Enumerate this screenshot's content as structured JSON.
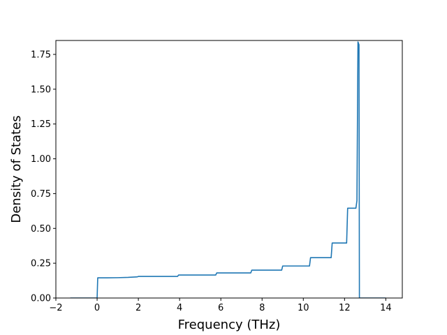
{
  "chart_data": {
    "type": "line",
    "title": "",
    "xlabel": "Frequency (THz)",
    "ylabel": "Density of States",
    "xlim": [
      -2.0,
      14.8
    ],
    "ylim": [
      0.0,
      1.85
    ],
    "xticks": [
      -2,
      0,
      2,
      4,
      6,
      8,
      10,
      12,
      14
    ],
    "yticks": [
      0.0,
      0.25,
      0.5,
      0.75,
      1.0,
      1.25,
      1.5,
      1.75
    ],
    "xtick_labels": [
      "−2",
      "0",
      "2",
      "4",
      "6",
      "8",
      "10",
      "12",
      "14"
    ],
    "ytick_labels": [
      "0.00",
      "0.25",
      "0.50",
      "0.75",
      "1.00",
      "1.25",
      "1.50",
      "1.75"
    ],
    "grid": false,
    "line_color": "#1f77b4",
    "series": [
      {
        "x": [
          -1.3,
          0.0,
          0.03,
          0.5,
          1.0,
          1.5,
          1.95,
          2.0,
          3.9,
          3.95,
          5.75,
          5.8,
          7.45,
          7.5,
          8.95,
          9.0,
          10.3,
          10.35,
          11.35,
          11.4,
          12.1,
          12.15,
          12.55,
          12.6,
          12.65,
          12.7,
          12.72,
          14.0
        ],
        "y": [
          0.0,
          0.0,
          0.145,
          0.145,
          0.146,
          0.148,
          0.152,
          0.155,
          0.155,
          0.165,
          0.165,
          0.18,
          0.18,
          0.2,
          0.2,
          0.23,
          0.23,
          0.29,
          0.29,
          0.395,
          0.395,
          0.645,
          0.645,
          0.7,
          1.84,
          1.82,
          0.0,
          0.0
        ]
      }
    ]
  }
}
